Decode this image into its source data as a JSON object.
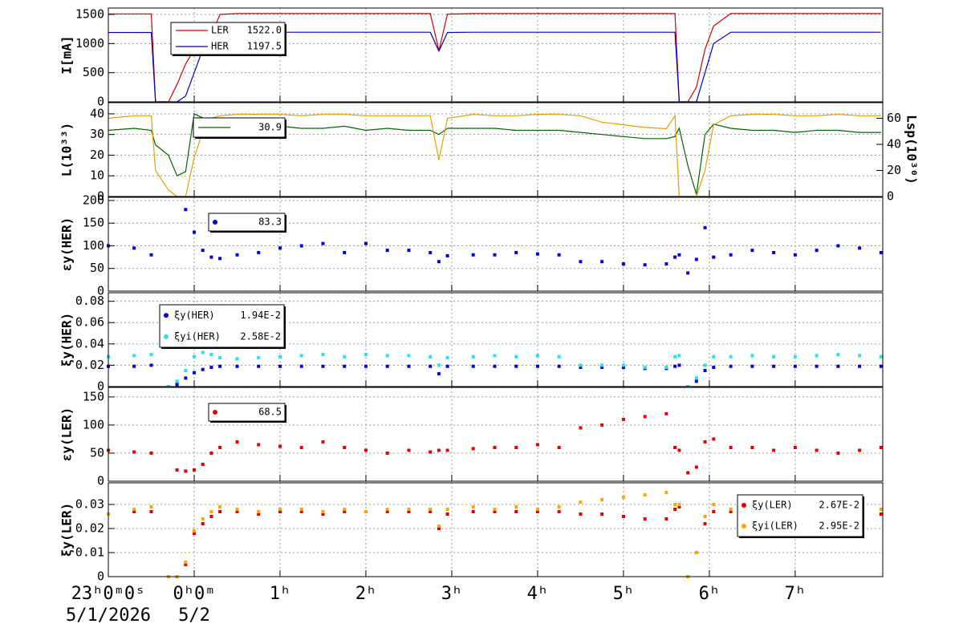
{
  "chart_data": [
    {
      "type": "line",
      "ylabel": "I[mA]",
      "x": [
        -1,
        -0.7,
        -0.5,
        -0.45,
        -0.3,
        -0.2,
        -0.1,
        0,
        0.1,
        0.2,
        0.3,
        0.5,
        0.75,
        1,
        1.25,
        1.5,
        1.75,
        2,
        2.25,
        2.5,
        2.75,
        2.85,
        2.95,
        3.25,
        3.5,
        3.75,
        4,
        4.25,
        4.5,
        4.75,
        5,
        5.25,
        5.5,
        5.6,
        5.65,
        5.75,
        5.85,
        5.95,
        6.05,
        6.25,
        6.5,
        6.75,
        7,
        7.25,
        7.5,
        7.75,
        8
      ],
      "xlim": [
        -1,
        8.02
      ],
      "xticks": [
        -1,
        0,
        1,
        2,
        3,
        4,
        5,
        6,
        7
      ],
      "ylim": [
        0,
        1610
      ],
      "yticks": [
        0,
        500,
        1000,
        1500
      ],
      "grid": true,
      "series": [
        {
          "name": "LER",
          "color": "#d40000",
          "legend_value": {
            "value": 1522,
            "label": "1522.0"
          },
          "values": [
            1510,
            1510,
            1510,
            0,
            0,
            300,
            650,
            900,
            1000,
            1150,
            1500,
            1515,
            1515,
            1515,
            1515,
            1515,
            1515,
            1515,
            1515,
            1515,
            1515,
            880,
            1505,
            1515,
            1515,
            1515,
            1515,
            1515,
            1515,
            1515,
            1515,
            1515,
            1515,
            1515,
            0,
            0,
            250,
            900,
            1300,
            1515,
            1515,
            1515,
            1515,
            1515,
            1515,
            1515,
            1515
          ]
        },
        {
          "name": "HER",
          "color": "#0000c8",
          "legend_value": {
            "value": 1197.5,
            "label": "1197.5"
          },
          "values": [
            1190,
            1190,
            1190,
            0,
            0,
            0,
            100,
            500,
            900,
            1050,
            1190,
            1195,
            1195,
            1195,
            1195,
            1195,
            1195,
            1195,
            1195,
            1195,
            1195,
            870,
            1190,
            1195,
            1195,
            1195,
            1195,
            1195,
            1195,
            1195,
            1195,
            1195,
            1195,
            1195,
            0,
            0,
            0,
            500,
            1000,
            1195,
            1195,
            1195,
            1195,
            1195,
            1195,
            1195,
            1195
          ]
        }
      ]
    },
    {
      "type": "line",
      "ylabel": "L(10³³)",
      "y2label": "Lsp(10³⁰)",
      "x": [
        -1,
        -0.7,
        -0.5,
        -0.45,
        -0.3,
        -0.2,
        -0.1,
        0,
        0.1,
        0.2,
        0.3,
        0.5,
        0.75,
        1,
        1.25,
        1.5,
        1.75,
        2,
        2.25,
        2.5,
        2.75,
        2.85,
        2.95,
        3.25,
        3.5,
        3.75,
        4,
        4.25,
        4.5,
        4.75,
        5,
        5.25,
        5.5,
        5.6,
        5.65,
        5.75,
        5.85,
        5.95,
        6.05,
        6.25,
        6.5,
        6.75,
        7,
        7.25,
        7.5,
        7.75,
        8
      ],
      "xlim": [
        -1,
        8.02
      ],
      "xticks": [
        -1,
        0,
        1,
        2,
        3,
        4,
        5,
        6,
        7
      ],
      "ylim": [
        0,
        45.4
      ],
      "yticks": [
        0,
        10,
        20,
        30,
        40
      ],
      "y2lim": [
        0,
        72
      ],
      "y2ticks": [
        0,
        20,
        40,
        60
      ],
      "grid": true,
      "series": [
        {
          "color": "#006400",
          "legend_value": {
            "value": 30.9,
            "label": "30.9"
          },
          "values": [
            32,
            33,
            32,
            25,
            20,
            10,
            12,
            40,
            38,
            38,
            35,
            33,
            33,
            34,
            33,
            33,
            34,
            32,
            33,
            32,
            32,
            30,
            33,
            33,
            33,
            32,
            32,
            32,
            31,
            30,
            29,
            28,
            28,
            29,
            33,
            15,
            1,
            30,
            35,
            33,
            32,
            32,
            31,
            32,
            32,
            31,
            31
          ]
        },
        {
          "color": "#e0a000",
          "axis": "y2",
          "values": [
            60,
            62,
            62,
            20,
            5,
            0,
            0,
            30,
            50,
            60,
            62,
            63,
            63,
            63,
            62,
            63,
            63,
            62,
            62,
            62,
            62,
            28,
            60,
            63,
            62,
            62,
            63,
            63,
            62,
            57,
            55,
            53,
            52,
            62,
            0,
            0,
            0,
            20,
            55,
            62,
            63,
            63,
            62,
            62,
            63,
            62,
            62
          ]
        }
      ]
    },
    {
      "type": "scatter",
      "ylabel": "εy(HER)",
      "x": [
        -1,
        -0.7,
        -0.5,
        -0.45,
        -0.3,
        -0.2,
        -0.1,
        0,
        0.1,
        0.2,
        0.3,
        0.5,
        0.75,
        1,
        1.25,
        1.5,
        1.75,
        2,
        2.25,
        2.5,
        2.75,
        2.85,
        2.95,
        3.25,
        3.5,
        3.75,
        4,
        4.25,
        4.5,
        4.75,
        5,
        5.25,
        5.5,
        5.6,
        5.65,
        5.75,
        5.85,
        5.95,
        6.05,
        6.25,
        6.5,
        6.75,
        7,
        7.25,
        7.5,
        7.75,
        8
      ],
      "xlim": [
        -1,
        8.02
      ],
      "xticks": [
        -1,
        0,
        1,
        2,
        3,
        4,
        5,
        6,
        7
      ],
      "ylim": [
        0,
        207
      ],
      "yticks": [
        0,
        50,
        100,
        150,
        200
      ],
      "grid": true,
      "series": [
        {
          "color": "#0000e6",
          "legend_value": {
            "value": 83.3,
            "label": "83.3"
          },
          "values": [
            100,
            95,
            80,
            null,
            null,
            null,
            180,
            130,
            90,
            75,
            72,
            80,
            85,
            95,
            100,
            105,
            85,
            105,
            90,
            90,
            85,
            65,
            78,
            80,
            80,
            85,
            82,
            80,
            65,
            65,
            60,
            58,
            60,
            75,
            80,
            40,
            70,
            140,
            75,
            80,
            90,
            85,
            80,
            90,
            100,
            95,
            85
          ]
        }
      ]
    },
    {
      "type": "scatter",
      "ylabel": "ξy(HER)",
      "x": [
        -1,
        -0.7,
        -0.5,
        -0.45,
        -0.3,
        -0.2,
        -0.1,
        0,
        0.1,
        0.2,
        0.3,
        0.5,
        0.75,
        1,
        1.25,
        1.5,
        1.75,
        2,
        2.25,
        2.5,
        2.75,
        2.85,
        2.95,
        3.25,
        3.5,
        3.75,
        4,
        4.25,
        4.5,
        4.75,
        5,
        5.25,
        5.5,
        5.6,
        5.65,
        5.75,
        5.85,
        5.95,
        6.05,
        6.25,
        6.5,
        6.75,
        7,
        7.25,
        7.5,
        7.75,
        8
      ],
      "xlim": [
        -1,
        8.02
      ],
      "xticks": [
        -1,
        0,
        1,
        2,
        3,
        4,
        5,
        6,
        7
      ],
      "ylim": [
        0,
        0.088
      ],
      "yticks": [
        0,
        0.02,
        0.04,
        0.06,
        0.08
      ],
      "grid": true,
      "series": [
        {
          "name": "ξy(HER)",
          "color": "#0000e6",
          "legend_value": {
            "value": 0.0194,
            "label": "1.94E-2"
          },
          "values": [
            0.019,
            0.019,
            0.02,
            null,
            0,
            0.002,
            0.008,
            0.013,
            0.016,
            0.018,
            0.019,
            0.019,
            0.019,
            0.019,
            0.019,
            0.019,
            0.019,
            0.019,
            0.019,
            0.019,
            0.019,
            0.012,
            0.019,
            0.019,
            0.019,
            0.019,
            0.019,
            0.019,
            0.018,
            0.018,
            0.018,
            0.017,
            0.017,
            0.019,
            0.02,
            0,
            0.005,
            0.015,
            0.018,
            0.019,
            0.019,
            0.019,
            0.019,
            0.019,
            0.019,
            0.019,
            0.019
          ]
        },
        {
          "name": "ξyi(HER)",
          "color": "#22e6e6",
          "legend_value": {
            "value": 0.0258,
            "label": "2.58E-2"
          },
          "values": [
            0.028,
            0.029,
            0.03,
            null,
            0,
            0.005,
            0.015,
            0.028,
            0.032,
            0.03,
            0.027,
            0.026,
            0.027,
            0.028,
            0.029,
            0.03,
            0.028,
            0.03,
            0.029,
            0.029,
            0.028,
            0.02,
            0.027,
            0.028,
            0.029,
            0.028,
            0.029,
            0.028,
            0.02,
            0.02,
            0.02,
            0.018,
            0.018,
            0.028,
            0.029,
            0,
            0.008,
            0.02,
            0.028,
            0.028,
            0.029,
            0.028,
            0.028,
            0.029,
            0.03,
            0.029,
            0.028
          ]
        }
      ]
    },
    {
      "type": "scatter",
      "ylabel": "εy(LER)",
      "x": [
        -1,
        -0.7,
        -0.5,
        -0.45,
        -0.3,
        -0.2,
        -0.1,
        0,
        0.1,
        0.2,
        0.3,
        0.5,
        0.75,
        1,
        1.25,
        1.5,
        1.75,
        2,
        2.25,
        2.5,
        2.75,
        2.85,
        2.95,
        3.25,
        3.5,
        3.75,
        4,
        4.25,
        4.5,
        4.75,
        5,
        5.25,
        5.5,
        5.6,
        5.65,
        5.75,
        5.85,
        5.95,
        6.05,
        6.25,
        6.5,
        6.75,
        7,
        7.25,
        7.5,
        7.75,
        8
      ],
      "xlim": [
        -1,
        8.02
      ],
      "xticks": [
        -1,
        0,
        1,
        2,
        3,
        4,
        5,
        6,
        7
      ],
      "ylim": [
        0,
        167
      ],
      "yticks": [
        0,
        50,
        100,
        150
      ],
      "grid": true,
      "series": [
        {
          "color": "#e60000",
          "legend_value": {
            "value": 68.5,
            "label": "68.5"
          },
          "values": [
            55,
            52,
            50,
            null,
            null,
            20,
            18,
            20,
            30,
            50,
            60,
            70,
            65,
            62,
            60,
            70,
            60,
            55,
            50,
            55,
            52,
            55,
            55,
            58,
            60,
            60,
            65,
            60,
            95,
            100,
            110,
            115,
            120,
            60,
            55,
            15,
            25,
            70,
            75,
            60,
            60,
            55,
            60,
            55,
            50,
            55,
            60
          ]
        }
      ]
    },
    {
      "type": "scatter",
      "ylabel": "ξy(LER)",
      "x": [
        -1,
        -0.7,
        -0.5,
        -0.45,
        -0.3,
        -0.2,
        -0.1,
        0,
        0.1,
        0.2,
        0.3,
        0.5,
        0.75,
        1,
        1.25,
        1.5,
        1.75,
        2,
        2.25,
        2.5,
        2.75,
        2.85,
        2.95,
        3.25,
        3.5,
        3.75,
        4,
        4.25,
        4.5,
        4.75,
        5,
        5.25,
        5.5,
        5.6,
        5.65,
        5.75,
        5.85,
        5.95,
        6.05,
        6.25,
        6.5,
        6.75,
        7,
        7.25,
        7.5,
        7.75,
        8
      ],
      "xlim": [
        -1,
        8.02
      ],
      "xticks": [
        {
          "value": -1,
          "label": "23ʰ0ᵐ0ˢ"
        },
        {
          "value": 0,
          "label": "0ʰ0ᵐ"
        },
        {
          "value": 1,
          "label": "1ʰ"
        },
        {
          "value": 2,
          "label": "2ʰ"
        },
        {
          "value": 3,
          "label": "3ʰ"
        },
        {
          "value": 4,
          "label": "4ʰ"
        },
        {
          "value": 5,
          "label": "5ʰ"
        },
        {
          "value": 6,
          "label": "6ʰ"
        },
        {
          "value": 7,
          "label": "7ʰ"
        }
      ],
      "date_labels": [
        {
          "value": -1,
          "label": "5/1/2026"
        },
        {
          "value": 0,
          "label": "5/2"
        }
      ],
      "ylim": [
        0,
        0.039
      ],
      "yticks": [
        0,
        0.01,
        0.02,
        0.03
      ],
      "grid": true,
      "series": [
        {
          "name": "ξy(LER)",
          "color": "#e60000",
          "legend_value": {
            "value": 0.0267,
            "label": "2.67E-2"
          },
          "values": [
            0.026,
            0.027,
            0.027,
            null,
            0,
            0,
            0.005,
            0.018,
            0.022,
            0.025,
            0.027,
            0.027,
            0.026,
            0.027,
            0.027,
            0.026,
            0.027,
            0.027,
            0.027,
            0.027,
            0.027,
            0.02,
            0.026,
            0.027,
            0.027,
            0.027,
            0.027,
            0.027,
            0.026,
            0.026,
            0.025,
            0.024,
            0.024,
            0.028,
            0.029,
            0,
            0.01,
            0.022,
            0.027,
            0.027,
            0.027,
            0.026,
            0.027,
            0.026,
            0.026,
            0.026,
            0.026
          ]
        },
        {
          "name": "ξyi(LER)",
          "color": "#ffa500",
          "legend_value": {
            "value": 0.0295,
            "label": "2.95E-2"
          },
          "values": [
            0.026,
            0.028,
            0.029,
            null,
            0,
            0,
            0.006,
            0.019,
            0.024,
            0.027,
            0.029,
            0.028,
            0.027,
            0.028,
            0.028,
            0.027,
            0.028,
            0.027,
            0.028,
            0.028,
            0.028,
            0.021,
            0.028,
            0.029,
            0.028,
            0.029,
            0.028,
            0.029,
            0.031,
            0.032,
            0.033,
            0.034,
            0.035,
            0.03,
            0.03,
            0,
            0.01,
            0.025,
            0.03,
            0.028,
            0.029,
            0.027,
            0.028,
            0.027,
            0.028,
            0.028,
            0.028
          ]
        }
      ]
    }
  ]
}
